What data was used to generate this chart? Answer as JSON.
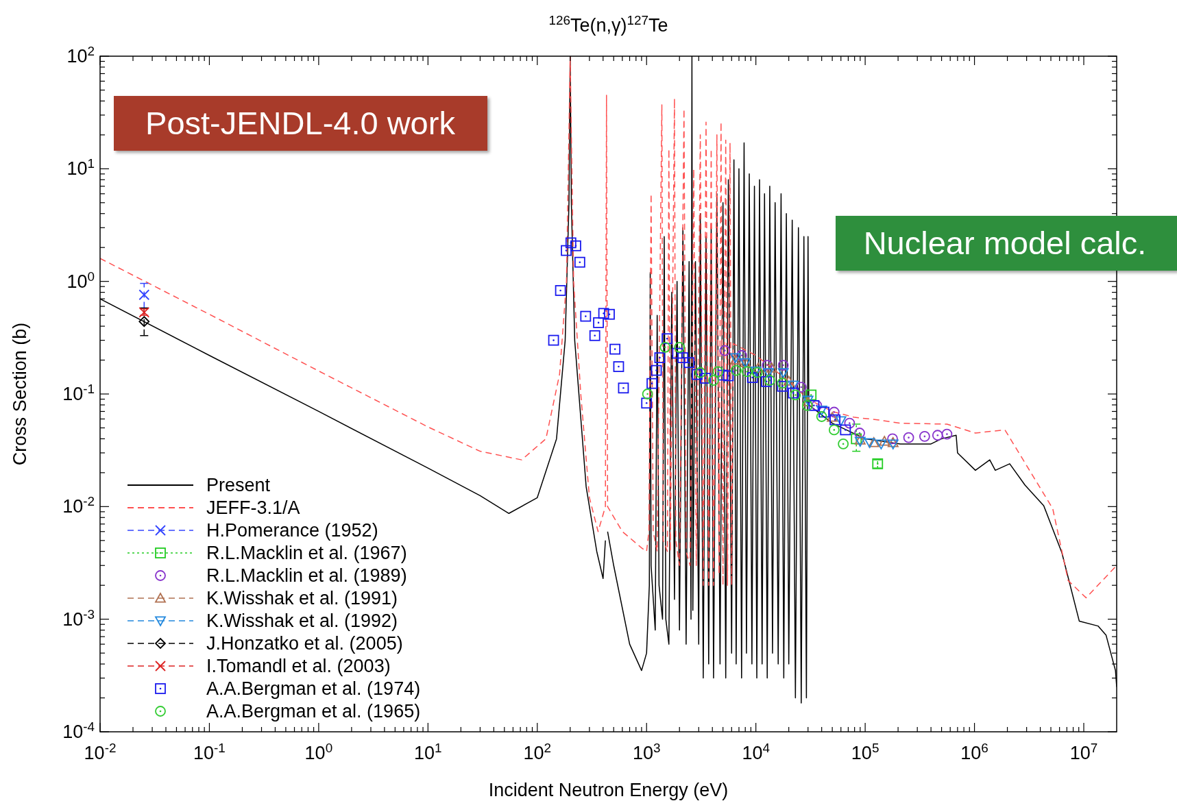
{
  "chart_data": {
    "type": "line",
    "title": "$^{126}$Te(n,γ)$^{127}$Te",
    "xlabel": "Incident Neutron Energy (eV)",
    "ylabel": "Cross Section (b)",
    "log": "xy",
    "grid": false,
    "legend": "bottom left",
    "xlim": [
      0.01,
      20000000
    ],
    "ylim": [
      0.0001,
      100
    ],
    "xticks": [
      {
        "value": 0.01,
        "label": "10$^{-2}$"
      },
      {
        "value": 0.1,
        "label": "10$^{-1}$"
      },
      {
        "value": 1,
        "label": "10$^{0}$"
      },
      {
        "value": 10,
        "label": "10$^{1}$"
      },
      {
        "value": 100,
        "label": "10$^{2}$"
      },
      {
        "value": 1000,
        "label": "10$^{3}$"
      },
      {
        "value": 10000,
        "label": "10$^{4}$"
      },
      {
        "value": 100000,
        "label": "10$^{5}$"
      },
      {
        "value": 1000000,
        "label": "10$^{6}$"
      },
      {
        "value": 10000000,
        "label": "10$^{7}$"
      },
      {
        "value": 0.02,
        "label": null
      },
      {
        "value": 0.03,
        "label": null
      },
      {
        "value": 0.04,
        "label": null
      },
      {
        "value": 0.05,
        "label": null
      },
      {
        "value": 0.06,
        "label": null
      },
      {
        "value": 0.07,
        "label": null
      },
      {
        "value": 0.08,
        "label": null
      },
      {
        "value": 0.09,
        "label": null
      },
      {
        "value": 0.2,
        "label": null
      },
      {
        "value": 0.3,
        "label": null
      },
      {
        "value": 0.4,
        "label": null
      },
      {
        "value": 0.5,
        "label": null
      },
      {
        "value": 0.6,
        "label": null
      },
      {
        "value": 0.7,
        "label": null
      },
      {
        "value": 0.8,
        "label": null
      },
      {
        "value": 0.9,
        "label": null
      },
      {
        "value": 2,
        "label": null
      },
      {
        "value": 3,
        "label": null
      },
      {
        "value": 4,
        "label": null
      },
      {
        "value": 5,
        "label": null
      },
      {
        "value": 6,
        "label": null
      },
      {
        "value": 7,
        "label": null
      },
      {
        "value": 8,
        "label": null
      },
      {
        "value": 9,
        "label": null
      },
      {
        "value": 20,
        "label": null
      },
      {
        "value": 30,
        "label": null
      },
      {
        "value": 40,
        "label": null
      },
      {
        "value": 50,
        "label": null
      },
      {
        "value": 60,
        "label": null
      },
      {
        "value": 70,
        "label": null
      },
      {
        "value": 80,
        "label": null
      },
      {
        "value": 90,
        "label": null
      },
      {
        "value": 200,
        "label": null
      },
      {
        "value": 300,
        "label": null
      },
      {
        "value": 400,
        "label": null
      },
      {
        "value": 500,
        "label": null
      },
      {
        "value": 600,
        "label": null
      },
      {
        "value": 700,
        "label": null
      },
      {
        "value": 800,
        "label": null
      },
      {
        "value": 900,
        "label": null
      },
      {
        "value": 2000,
        "label": null
      },
      {
        "value": 3000,
        "label": null
      },
      {
        "value": 4000,
        "label": null
      },
      {
        "value": 5000,
        "label": null
      },
      {
        "value": 6000,
        "label": null
      },
      {
        "value": 7000,
        "label": null
      },
      {
        "value": 8000,
        "label": null
      },
      {
        "value": 9000,
        "label": null
      },
      {
        "value": 20000,
        "label": null
      },
      {
        "value": 30000,
        "label": null
      },
      {
        "value": 40000,
        "label": null
      },
      {
        "value": 50000,
        "label": null
      },
      {
        "value": 60000,
        "label": null
      },
      {
        "value": 70000,
        "label": null
      },
      {
        "value": 80000,
        "label": null
      },
      {
        "value": 90000,
        "label": null
      },
      {
        "value": 200000,
        "label": null
      },
      {
        "value": 300000,
        "label": null
      },
      {
        "value": 400000,
        "label": null
      },
      {
        "value": 500000,
        "label": null
      },
      {
        "value": 600000,
        "label": null
      },
      {
        "value": 700000,
        "label": null
      },
      {
        "value": 800000,
        "label": null
      },
      {
        "value": 900000,
        "label": null
      },
      {
        "value": 2000000,
        "label": null
      },
      {
        "value": 3000000,
        "label": null
      },
      {
        "value": 4000000,
        "label": null
      },
      {
        "value": 5000000,
        "label": null
      },
      {
        "value": 6000000,
        "label": null
      },
      {
        "value": 7000000,
        "label": null
      },
      {
        "value": 8000000,
        "label": null
      },
      {
        "value": 9000000,
        "label": null
      }
    ],
    "yticks": [
      {
        "value": 0.0001,
        "label": "10$^{-4}$"
      },
      {
        "value": 0.001,
        "label": "10$^{-3}$"
      },
      {
        "value": 0.01,
        "label": "10$^{-2}$"
      },
      {
        "value": 0.1,
        "label": "10$^{-1}$"
      },
      {
        "value": 1,
        "label": "10$^{0}$"
      },
      {
        "value": 10,
        "label": "10$^{1}$"
      },
      {
        "value": 100,
        "label": "10$^{2}$"
      },
      {
        "value": 0.0002,
        "label": null
      },
      {
        "value": 0.0003,
        "label": null
      },
      {
        "value": 0.0004,
        "label": null
      },
      {
        "value": 0.0005,
        "label": null
      },
      {
        "value": 0.0006,
        "label": null
      },
      {
        "value": 0.0007,
        "label": null
      },
      {
        "value": 0.0008,
        "label": null
      },
      {
        "value": 0.0009,
        "label": null
      },
      {
        "value": 0.002,
        "label": null
      },
      {
        "value": 0.003,
        "label": null
      },
      {
        "value": 0.004,
        "label": null
      },
      {
        "value": 0.005,
        "label": null
      },
      {
        "value": 0.006,
        "label": null
      },
      {
        "value": 0.007,
        "label": null
      },
      {
        "value": 0.008,
        "label": null
      },
      {
        "value": 0.009,
        "label": null
      },
      {
        "value": 0.02,
        "label": null
      },
      {
        "value": 0.03,
        "label": null
      },
      {
        "value": 0.04,
        "label": null
      },
      {
        "value": 0.05,
        "label": null
      },
      {
        "value": 0.06,
        "label": null
      },
      {
        "value": 0.07,
        "label": null
      },
      {
        "value": 0.08,
        "label": null
      },
      {
        "value": 0.09,
        "label": null
      },
      {
        "value": 0.2,
        "label": null
      },
      {
        "value": 0.3,
        "label": null
      },
      {
        "value": 0.4,
        "label": null
      },
      {
        "value": 0.5,
        "label": null
      },
      {
        "value": 0.6,
        "label": null
      },
      {
        "value": 0.7,
        "label": null
      },
      {
        "value": 0.8,
        "label": null
      },
      {
        "value": 0.9,
        "label": null
      },
      {
        "value": 2,
        "label": null
      },
      {
        "value": 3,
        "label": null
      },
      {
        "value": 4,
        "label": null
      },
      {
        "value": 5,
        "label": null
      },
      {
        "value": 6,
        "label": null
      },
      {
        "value": 7,
        "label": null
      },
      {
        "value": 8,
        "label": null
      },
      {
        "value": 9,
        "label": null
      },
      {
        "value": 20,
        "label": null
      },
      {
        "value": 30,
        "label": null
      },
      {
        "value": 40,
        "label": null
      },
      {
        "value": 50,
        "label": null
      },
      {
        "value": 60,
        "label": null
      },
      {
        "value": 70,
        "label": null
      },
      {
        "value": 80,
        "label": null
      },
      {
        "value": 90,
        "label": null
      }
    ],
    "annotations": [
      "Post-JENDL-4.0 work",
      "Nuclear model calc."
    ],
    "series": [
      {
        "name": "Present",
        "color": "#000000",
        "line_style": "solid",
        "marker": "none",
        "x": [
          0.01,
          0.1,
          1,
          10,
          30,
          55,
          100,
          150,
          180,
          195,
          200,
          205,
          220,
          280,
          350,
          400,
          420,
          430,
          440,
          500,
          700,
          900,
          1000,
          1060,
          1080,
          1100,
          1200,
          1250,
          1300,
          1400,
          1450,
          1500,
          1600,
          1700,
          1800,
          1900,
          2000,
          2150,
          2300,
          2450,
          2550,
          2600,
          2650,
          2800,
          3000,
          3100,
          3300,
          3500,
          3700,
          3900,
          4100,
          4400,
          4700,
          5000,
          5300,
          5600,
          6000,
          6300,
          6600,
          7000,
          7400,
          7800,
          8200,
          8700,
          9200,
          9700,
          10200,
          10800,
          11400,
          12000,
          12700,
          13400,
          14200,
          15000,
          16000,
          17000,
          18000,
          19000,
          20000,
          21500,
          23000,
          24500,
          26000,
          27500,
          29000,
          30000,
          30500,
          50000,
          100000,
          210000,
          400000,
          500000,
          680000,
          700000,
          1020000,
          1380000,
          1550000,
          2100000,
          2900000,
          4300000,
          6300000,
          9100000,
          13500000,
          16000000,
          19500000,
          20000000
        ],
        "values": [
          0.7,
          0.22,
          0.07,
          0.022,
          0.0125,
          0.0087,
          0.012,
          0.04,
          0.3,
          5,
          100,
          5,
          0.3,
          0.015,
          0.004,
          0.0023,
          0.005,
          null,
          0.006,
          0.003,
          0.0006,
          0.00035,
          0.0005,
          0.002,
          1.2,
          0.003,
          0.0008,
          0.5,
          0.002,
          0.001,
          2.5,
          0.001,
          0.0006,
          0.8,
          0.0015,
          1,
          0.0008,
          3,
          0.0006,
          1.5,
          0.001,
          100,
          0.0012,
          1.5,
          0.0006,
          4,
          0.0003,
          2.5,
          0.0004,
          3,
          0.0003,
          6,
          0.0004,
          5,
          0.0003,
          8,
          0.0005,
          12,
          0.0004,
          10,
          0.0003,
          17,
          0.0005,
          9,
          0.0004,
          7,
          0.0003,
          8,
          0.0004,
          6,
          0.0003,
          7,
          0.0005,
          5,
          0.0004,
          6,
          0.0003,
          4,
          0.0004,
          3.5,
          0.0002,
          3,
          0.00018,
          2.5,
          0.0002,
          2.5,
          0.08,
          0.055,
          0.04,
          0.036,
          0.036,
          0.04,
          0.043,
          0.03,
          0.021,
          0.026,
          0.021,
          0.024,
          0.0155,
          0.0102,
          0.0039,
          0.00096,
          0.00087,
          0.00072,
          0.00035,
          0.00025
        ]
      },
      {
        "name": "JEFF-3.1/A",
        "color": "#ff5050",
        "line_style": "dashed",
        "marker": "none",
        "x": [
          0.01,
          0.1,
          1,
          10,
          30,
          72,
          120,
          160,
          185,
          200,
          215,
          250,
          300,
          360,
          420,
          430,
          440,
          600,
          900,
          1000,
          1050,
          1100,
          1150,
          1250,
          1380,
          1420,
          1550,
          1600,
          1650,
          1800,
          1850,
          2000,
          2200,
          2300,
          2500,
          2700,
          2850,
          3100,
          3300,
          3500,
          3700,
          3900,
          4100,
          4400,
          4600,
          4800,
          5000,
          5300,
          5500,
          5800,
          6000,
          6200,
          10000,
          20000,
          30000,
          50000,
          80000,
          130000,
          210000,
          560000,
          1020000,
          1900000,
          5200000,
          7200000,
          10500000,
          20000000
        ],
        "values": [
          1.6,
          0.51,
          0.16,
          0.051,
          0.031,
          0.026,
          0.04,
          0.15,
          1,
          100,
          1,
          0.1,
          0.012,
          0.006,
          0.01,
          45,
          0.01,
          0.006,
          0.0043,
          0.004,
          0.006,
          6,
          0.006,
          0.004,
          37,
          0.005,
          0.004,
          15,
          0.004,
          42,
          0.005,
          0.003,
          34,
          0.004,
          0.003,
          10,
          0.003,
          20,
          0.002,
          26,
          0.002,
          15,
          0.002,
          20,
          0.0025,
          26,
          0.002,
          18,
          0.002,
          17,
          0.002,
          0.28,
          0.22,
          0.13,
          0.09,
          0.07,
          0.062,
          0.059,
          0.055,
          0.054,
          0.045,
          0.048,
          0.0096,
          0.0022,
          0.00155,
          0.003
        ]
      },
      {
        "name": "H.Pomerance (1952)",
        "type": "scatter",
        "color": "#3344ff",
        "marker": "cross",
        "line_style": "dashed",
        "x": [
          0.0253
        ],
        "values": [
          0.76
        ],
        "errors": [
          [
            0.58,
            0.96
          ]
        ]
      },
      {
        "name": "R.L.Macklin et al. (1967)",
        "type": "scatter",
        "color": "#22cc22",
        "marker": "square",
        "line_style": "dotted",
        "x": [
          32000,
          83000,
          130000
        ],
        "values": [
          0.098,
          0.04,
          0.024
        ],
        "errors": [
          null,
          [
            0.031,
            0.054
          ],
          [
            0.022,
            0.026
          ]
        ]
      },
      {
        "name": "R.L.Macklin et al. (1989)",
        "type": "scatter",
        "color": "#8833cc",
        "marker": "circle",
        "x": [
          5200,
          7400,
          12700,
          17800,
          26000,
          36000,
          52000,
          72000,
          89000,
          178000,
          250000,
          350000,
          460000,
          560000
        ],
        "values": [
          0.243,
          0.22,
          0.18,
          0.18,
          0.115,
          0.079,
          0.069,
          0.055,
          0.045,
          0.04,
          0.041,
          0.042,
          0.043,
          0.044
        ]
      },
      {
        "name": "K.Wisshak et al. (1991)",
        "type": "scatter",
        "color": "#b07050",
        "marker": "triangle",
        "line_style": "dashed",
        "x": [
          6500,
          8000,
          10500,
          14000,
          20000,
          30000,
          50000,
          90000,
          120000,
          150000,
          180000
        ],
        "values": [
          0.2,
          0.19,
          0.17,
          0.17,
          0.13,
          0.085,
          0.062,
          0.039,
          0.037,
          0.038,
          0.037
        ]
      },
      {
        "name": "K.Wisshak et al. (1992)",
        "type": "scatter",
        "color": "#2288dd",
        "marker": "triangle-down",
        "line_style": "dashed",
        "x": [
          6500,
          8000,
          10000,
          13000,
          17800,
          22000,
          30000,
          40000,
          60000,
          90000,
          110000,
          140000,
          180000
        ],
        "values": [
          0.21,
          0.19,
          0.16,
          0.155,
          0.155,
          0.12,
          0.088,
          0.072,
          0.058,
          0.038,
          0.037,
          0.036,
          0.036
        ]
      },
      {
        "name": "J.Honzatko et al. (2005)",
        "type": "scatter",
        "color": "#000000",
        "marker": "diamond",
        "line_style": "dashed",
        "x": [
          0.0253
        ],
        "values": [
          0.44
        ],
        "errors": [
          [
            0.33,
            0.58
          ]
        ]
      },
      {
        "name": "I.Tomandl et al. (2003)",
        "type": "scatter",
        "color": "#dd2222",
        "marker": "cross",
        "line_style": "dashed",
        "x": [
          0.0253
        ],
        "values": [
          0.53
        ],
        "errors": [
          [
            0.5,
            0.57
          ]
        ]
      },
      {
        "name": "A.A.Bergman et al. (1974)",
        "type": "scatter",
        "color": "#1a1aee",
        "marker": "square",
        "x": [
          141,
          163,
          184,
          203,
          225,
          245,
          277,
          336,
          363,
          405,
          457,
          514,
          555,
          614,
          1000,
          1120,
          1230,
          1320,
          1540,
          1920,
          2150,
          2450,
          2900,
          3450,
          5000,
          5600,
          9300,
          12500,
          17500,
          22000,
          34000,
          42000,
          53000,
          66000
        ],
        "values": [
          0.3,
          0.83,
          1.88,
          2.2,
          2.07,
          1.48,
          0.49,
          0.33,
          0.43,
          0.52,
          0.51,
          0.25,
          0.175,
          0.113,
          0.083,
          0.124,
          0.162,
          0.21,
          0.31,
          0.23,
          0.21,
          0.19,
          0.149,
          0.138,
          0.147,
          0.145,
          0.14,
          0.129,
          0.117,
          0.102,
          0.079,
          0.069,
          0.059,
          0.048
        ]
      },
      {
        "name": "A.A.Bergman et al. (1965)",
        "type": "scatter",
        "color": "#33cc33",
        "marker": "circle",
        "x": [
          1020,
          1480,
          2000,
          3100,
          4100,
          4500,
          6600,
          8300,
          10300,
          13400,
          17500,
          23000,
          29600,
          40000,
          52000,
          63000
        ],
        "values": [
          0.1,
          0.26,
          0.26,
          0.155,
          0.132,
          0.158,
          0.162,
          0.158,
          0.155,
          0.132,
          0.125,
          0.098,
          0.079,
          0.063,
          0.048,
          0.036
        ]
      }
    ]
  }
}
